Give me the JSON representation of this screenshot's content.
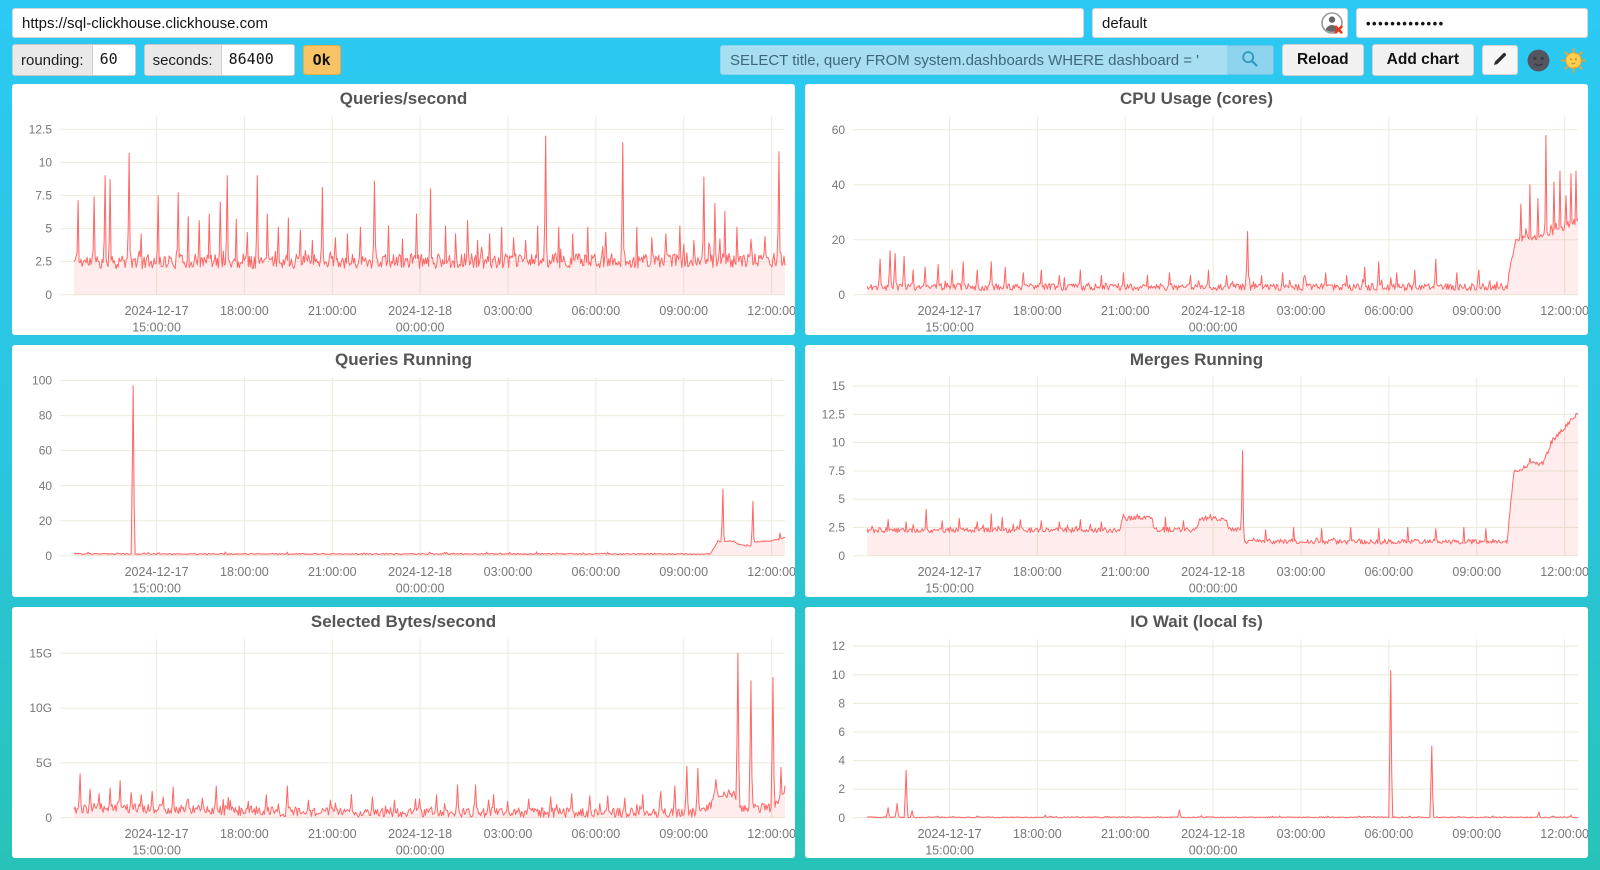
{
  "toolbar": {
    "url": "https://sql-clickhouse.clickhouse.com",
    "user": "default",
    "password_masked": "•••••••••••••",
    "rounding_label": "rounding:",
    "rounding_value": "60",
    "seconds_label": "seconds:",
    "seconds_value": "86400",
    "ok_label": "Ok",
    "query_value": "SELECT title, query FROM system.dashboards WHERE dashboard = '",
    "reload_label": "Reload",
    "add_chart_label": "Add chart",
    "icons": [
      "search-icon",
      "pencil-icon",
      "moon-icon",
      "sun-icon",
      "user-error-icon"
    ]
  },
  "colors": {
    "bg_top": "#2bc9f4",
    "bg_bottom": "#28c3b7",
    "accent_line": "#ff6666",
    "area_fill": "rgba(255,102,102,0.12)",
    "grid": "#ecebdc",
    "tick": "#777777",
    "title": "#545454",
    "ok_button": "#f8c266",
    "query_bg": "#a7def2"
  },
  "x_axis": {
    "ticks": [
      {
        "f": 0.116,
        "l1": "2024-12-17",
        "l2": "15:00:00"
      },
      {
        "f": 0.2396,
        "l1": "18:00:00"
      },
      {
        "f": 0.3632,
        "l1": "21:00:00"
      },
      {
        "f": 0.4868,
        "l1": "2024-12-18",
        "l2": "00:00:00"
      },
      {
        "f": 0.6104,
        "l1": "03:00:00"
      },
      {
        "f": 0.734,
        "l1": "06:00:00"
      },
      {
        "f": 0.8576,
        "l1": "09:00:00"
      },
      {
        "f": 0.9812,
        "l1": "12:00:00"
      }
    ]
  },
  "chart_data": [
    {
      "type": "area",
      "title": "Queries/second",
      "y_max": 13.5,
      "y_ticks": [
        {
          "v": 0,
          "label": "0"
        },
        {
          "v": 2.5,
          "label": "2.5"
        },
        {
          "v": 5,
          "label": "5"
        },
        {
          "v": 7.5,
          "label": "7.5"
        },
        {
          "v": 10,
          "label": "10"
        },
        {
          "v": 12.5,
          "label": "12.5"
        }
      ],
      "seed": 11,
      "series": {
        "baseline": [
          [
            0,
            2.5
          ],
          [
            1,
            2.6
          ]
        ],
        "noise": 0.55,
        "floor": 1.8,
        "spikes": [
          [
            0.005,
            7.1
          ],
          [
            0.028,
            7.4
          ],
          [
            0.044,
            9.0
          ],
          [
            0.05,
            8.7
          ],
          [
            0.078,
            10.7
          ],
          [
            0.095,
            4.6
          ],
          [
            0.118,
            7.5
          ],
          [
            0.147,
            7.7
          ],
          [
            0.16,
            5.9
          ],
          [
            0.176,
            5.6
          ],
          [
            0.19,
            6.1
          ],
          [
            0.205,
            7.0
          ],
          [
            0.215,
            9.0
          ],
          [
            0.228,
            5.7
          ],
          [
            0.243,
            4.7
          ],
          [
            0.258,
            9.0
          ],
          [
            0.272,
            6.1
          ],
          [
            0.287,
            5.1
          ],
          [
            0.302,
            5.8
          ],
          [
            0.318,
            4.9
          ],
          [
            0.335,
            4.1
          ],
          [
            0.35,
            8.1
          ],
          [
            0.368,
            4.3
          ],
          [
            0.385,
            4.6
          ],
          [
            0.403,
            5.1
          ],
          [
            0.422,
            8.6
          ],
          [
            0.442,
            5.2
          ],
          [
            0.462,
            4.2
          ],
          [
            0.482,
            6.1
          ],
          [
            0.502,
            8.0
          ],
          [
            0.522,
            5.2
          ],
          [
            0.537,
            4.6
          ],
          [
            0.553,
            5.6
          ],
          [
            0.568,
            4.1
          ],
          [
            0.585,
            4.6
          ],
          [
            0.602,
            5.1
          ],
          [
            0.618,
            4.3
          ],
          [
            0.635,
            4.1
          ],
          [
            0.652,
            5.2
          ],
          [
            0.664,
            12.0
          ],
          [
            0.682,
            5.1
          ],
          [
            0.702,
            4.6
          ],
          [
            0.722,
            5.1
          ],
          [
            0.748,
            4.7
          ],
          [
            0.772,
            11.5
          ],
          [
            0.792,
            5.1
          ],
          [
            0.812,
            4.3
          ],
          [
            0.832,
            4.6
          ],
          [
            0.852,
            5.2
          ],
          [
            0.872,
            4.1
          ],
          [
            0.886,
            8.9
          ],
          [
            0.902,
            6.9
          ],
          [
            0.916,
            6.3
          ],
          [
            0.932,
            5.1
          ],
          [
            0.952,
            4.2
          ],
          [
            0.972,
            4.4
          ],
          [
            0.992,
            10.8
          ]
        ]
      }
    },
    {
      "type": "area",
      "title": "CPU Usage (cores)",
      "y_max": 65,
      "y_ticks": [
        {
          "v": 0,
          "label": "0"
        },
        {
          "v": 20,
          "label": "20"
        },
        {
          "v": 40,
          "label": "40"
        },
        {
          "v": 60,
          "label": "60"
        }
      ],
      "seed": 22,
      "series": {
        "baseline": [
          [
            0,
            2.8
          ],
          [
            0.9,
            2.8
          ],
          [
            0.912,
            20
          ],
          [
            0.95,
            21
          ],
          [
            1,
            27
          ]
        ],
        "noise": 1.3,
        "floor": 0.8,
        "spikes": [
          [
            0.018,
            13
          ],
          [
            0.032,
            16
          ],
          [
            0.04,
            15
          ],
          [
            0.052,
            14
          ],
          [
            0.065,
            9
          ],
          [
            0.082,
            10
          ],
          [
            0.1,
            11
          ],
          [
            0.12,
            9
          ],
          [
            0.135,
            12
          ],
          [
            0.155,
            9
          ],
          [
            0.175,
            12
          ],
          [
            0.195,
            10
          ],
          [
            0.22,
            8
          ],
          [
            0.245,
            9
          ],
          [
            0.27,
            7
          ],
          [
            0.3,
            9
          ],
          [
            0.33,
            7
          ],
          [
            0.36,
            8
          ],
          [
            0.395,
            7
          ],
          [
            0.425,
            8
          ],
          [
            0.455,
            7
          ],
          [
            0.48,
            9
          ],
          [
            0.505,
            7
          ],
          [
            0.535,
            23
          ],
          [
            0.555,
            7
          ],
          [
            0.585,
            8
          ],
          [
            0.615,
            7
          ],
          [
            0.645,
            8
          ],
          [
            0.675,
            7
          ],
          [
            0.7,
            10
          ],
          [
            0.72,
            12
          ],
          [
            0.745,
            8
          ],
          [
            0.77,
            9
          ],
          [
            0.8,
            13
          ],
          [
            0.83,
            8
          ],
          [
            0.86,
            9
          ],
          [
            0.92,
            33
          ],
          [
            0.932,
            40
          ],
          [
            0.944,
            35
          ],
          [
            0.955,
            58
          ],
          [
            0.966,
            41
          ],
          [
            0.975,
            45
          ],
          [
            0.983,
            36
          ],
          [
            0.99,
            44
          ],
          [
            0.997,
            45
          ]
        ]
      }
    },
    {
      "type": "area",
      "title": "Queries Running",
      "y_max": 102,
      "y_ticks": [
        {
          "v": 0,
          "label": "0"
        },
        {
          "v": 20,
          "label": "20"
        },
        {
          "v": 40,
          "label": "40"
        },
        {
          "v": 60,
          "label": "60"
        },
        {
          "v": 80,
          "label": "80"
        },
        {
          "v": 100,
          "label": "100"
        }
      ],
      "seed": 33,
      "series": {
        "baseline": [
          [
            0,
            1
          ],
          [
            0.895,
            1
          ],
          [
            0.905,
            8
          ],
          [
            0.925,
            8.5
          ],
          [
            0.938,
            6
          ],
          [
            0.95,
            5.5
          ],
          [
            0.96,
            8
          ],
          [
            0.98,
            8.5
          ],
          [
            1,
            10
          ]
        ],
        "noise": 0.35,
        "floor": 0.2,
        "spikes": [
          [
            0.02,
            2.0
          ],
          [
            0.083,
            97
          ],
          [
            0.3,
            2.0
          ],
          [
            0.5,
            2.0
          ],
          [
            0.65,
            2.2
          ],
          [
            0.75,
            2.0
          ],
          [
            0.912,
            38
          ],
          [
            0.955,
            31
          ],
          [
            0.993,
            13
          ]
        ]
      }
    },
    {
      "type": "area",
      "title": "Merges Running",
      "y_max": 15.8,
      "y_ticks": [
        {
          "v": 0,
          "label": "0"
        },
        {
          "v": 2.5,
          "label": "2.5"
        },
        {
          "v": 5,
          "label": "5"
        },
        {
          "v": 7.5,
          "label": "7.5"
        },
        {
          "v": 10,
          "label": "10"
        },
        {
          "v": 12.5,
          "label": "12.5"
        },
        {
          "v": 15,
          "label": "15"
        }
      ],
      "seed": 44,
      "series": {
        "baseline": [
          [
            0,
            2.25
          ],
          [
            0.355,
            2.25
          ],
          [
            0.36,
            3.3
          ],
          [
            0.4,
            3.3
          ],
          [
            0.405,
            2.3
          ],
          [
            0.46,
            2.3
          ],
          [
            0.47,
            3.3
          ],
          [
            0.505,
            3.3
          ],
          [
            0.51,
            2.3
          ],
          [
            0.525,
            2.3
          ],
          [
            0.532,
            1.25
          ],
          [
            0.9,
            1.25
          ],
          [
            0.91,
            7.4
          ],
          [
            0.935,
            8.2
          ],
          [
            0.95,
            8.0
          ],
          [
            0.965,
            10.3
          ],
          [
            0.98,
            11.2
          ],
          [
            1,
            12.7
          ]
        ],
        "noise": 0.22,
        "floor": 0.7,
        "spikes": [
          [
            0.03,
            3.2
          ],
          [
            0.055,
            3.0
          ],
          [
            0.083,
            4.1
          ],
          [
            0.105,
            3.1
          ],
          [
            0.13,
            3.3
          ],
          [
            0.155,
            3.0
          ],
          [
            0.175,
            3.7
          ],
          [
            0.19,
            3.4
          ],
          [
            0.215,
            3.2
          ],
          [
            0.245,
            3.1
          ],
          [
            0.27,
            3.0
          ],
          [
            0.3,
            3.2
          ],
          [
            0.33,
            3.0
          ],
          [
            0.42,
            3.4
          ],
          [
            0.445,
            3.1
          ],
          [
            0.528,
            9.3
          ],
          [
            0.56,
            2.3
          ],
          [
            0.6,
            2.5
          ],
          [
            0.64,
            2.4
          ],
          [
            0.68,
            2.5
          ],
          [
            0.72,
            2.4
          ],
          [
            0.76,
            2.5
          ],
          [
            0.8,
            2.4
          ],
          [
            0.84,
            2.5
          ],
          [
            0.87,
            2.4
          ]
        ]
      }
    },
    {
      "type": "area",
      "title": "Selected Bytes/second",
      "y_max": 16.3,
      "y_ticks": [
        {
          "v": 0,
          "label": "0"
        },
        {
          "v": 5,
          "label": "5G"
        },
        {
          "v": 10,
          "label": "10G"
        },
        {
          "v": 15,
          "label": "15G"
        }
      ],
      "seed": 55,
      "series": {
        "baseline": [
          [
            0,
            0.8
          ],
          [
            0.05,
            0.9
          ],
          [
            0.3,
            0.55
          ],
          [
            0.6,
            0.45
          ],
          [
            0.88,
            0.45
          ],
          [
            0.895,
            1.0
          ],
          [
            0.9,
            2.2
          ],
          [
            0.93,
            2.2
          ],
          [
            0.94,
            0.9
          ],
          [
            0.985,
            0.9
          ],
          [
            1,
            2.5
          ]
        ],
        "noise": 0.45,
        "floor": 0.05,
        "spikes": [
          [
            0.008,
            4.0
          ],
          [
            0.022,
            2.6
          ],
          [
            0.035,
            2.2
          ],
          [
            0.05,
            2.7
          ],
          [
            0.065,
            3.4
          ],
          [
            0.08,
            2.3
          ],
          [
            0.095,
            2.1
          ],
          [
            0.11,
            2.4
          ],
          [
            0.125,
            1.9
          ],
          [
            0.14,
            2.8
          ],
          [
            0.16,
            1.7
          ],
          [
            0.18,
            1.8
          ],
          [
            0.2,
            2.9
          ],
          [
            0.22,
            1.6
          ],
          [
            0.245,
            1.5
          ],
          [
            0.27,
            2.1
          ],
          [
            0.3,
            2.9
          ],
          [
            0.33,
            1.6
          ],
          [
            0.36,
            1.6
          ],
          [
            0.39,
            2.1
          ],
          [
            0.42,
            1.9
          ],
          [
            0.45,
            1.6
          ],
          [
            0.48,
            1.7
          ],
          [
            0.51,
            2.1
          ],
          [
            0.54,
            3.0
          ],
          [
            0.565,
            3.0
          ],
          [
            0.59,
            2.1
          ],
          [
            0.61,
            1.5
          ],
          [
            0.64,
            1.7
          ],
          [
            0.67,
            1.9
          ],
          [
            0.7,
            2.2
          ],
          [
            0.725,
            2.0
          ],
          [
            0.75,
            2.0
          ],
          [
            0.775,
            1.8
          ],
          [
            0.8,
            2.1
          ],
          [
            0.825,
            2.4
          ],
          [
            0.845,
            2.9
          ],
          [
            0.862,
            4.7
          ],
          [
            0.878,
            4.5
          ],
          [
            0.934,
            15.0
          ],
          [
            0.952,
            12.5
          ],
          [
            0.983,
            12.8
          ],
          [
            0.995,
            4.6
          ]
        ]
      }
    },
    {
      "type": "area",
      "title": "IO Wait (local fs)",
      "y_max": 12.5,
      "y_ticks": [
        {
          "v": 0,
          "label": "0"
        },
        {
          "v": 2,
          "label": "2"
        },
        {
          "v": 4,
          "label": "4"
        },
        {
          "v": 6,
          "label": "6"
        },
        {
          "v": 8,
          "label": "8"
        },
        {
          "v": 10,
          "label": "10"
        },
        {
          "v": 12,
          "label": "12"
        }
      ],
      "seed": 66,
      "series": {
        "baseline": [
          [
            0,
            0.03
          ],
          [
            1,
            0.03
          ]
        ],
        "noise": 0.035,
        "floor": 0,
        "spikes": [
          [
            0.03,
            0.7
          ],
          [
            0.042,
            1.0
          ],
          [
            0.055,
            3.3
          ],
          [
            0.063,
            0.5
          ],
          [
            0.155,
            0.12
          ],
          [
            0.25,
            0.18
          ],
          [
            0.44,
            0.55
          ],
          [
            0.47,
            0.15
          ],
          [
            0.58,
            0.12
          ],
          [
            0.736,
            10.3
          ],
          [
            0.795,
            5.0
          ],
          [
            0.88,
            0.12
          ],
          [
            0.945,
            0.4
          ],
          [
            0.99,
            0.18
          ]
        ]
      }
    }
  ]
}
